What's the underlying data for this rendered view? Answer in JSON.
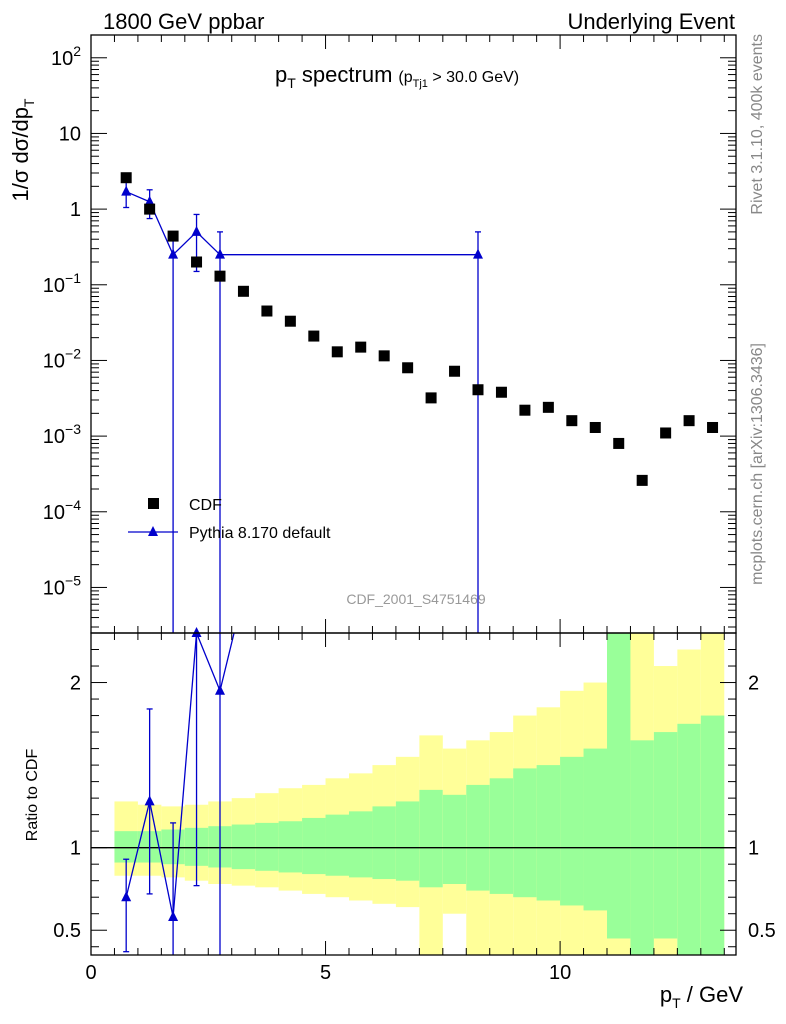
{
  "header": {
    "left": "1800 GeV ppbar",
    "right": "Underlying Event"
  },
  "title": {
    "main": "p",
    "main_sub": "T",
    "main_rest": " spectrum",
    "cut_open": "(p",
    "cut_sub": "Tj1",
    "cut_rest": " > 30.0 GeV)"
  },
  "side_label_top": "Rivet 3.1.10,  400k events",
  "side_label_bottom": "mcplots.cern.ch [arXiv:1306.3436]",
  "watermark": "CDF_2001_S4751469",
  "ylabel_main": "1/σ dσ/dp",
  "ylabel_main_sub": "T",
  "ylabel_ratio": "Ratio to CDF",
  "xlabel": "p",
  "xlabel_sub": "T",
  "xlabel_rest": " / GeV",
  "legend": {
    "data_label": "CDF",
    "mc_label": "Pythia 8.170 default"
  },
  "colors": {
    "mc": "#0000cc",
    "band_inner": "#99ff99",
    "band_outer": "#ffff99",
    "data": "#000000"
  },
  "chart_data": {
    "type": "scatter",
    "x_range": [
      0,
      13.75
    ],
    "main_yscale": "log",
    "main_ylim": [
      2.5e-06,
      200
    ],
    "ratio_ylim": [
      0.35,
      2.3
    ],
    "x_ticks": [
      {
        "v": 0,
        "label": "0"
      },
      {
        "v": 5,
        "label": "5"
      },
      {
        "v": 10,
        "label": "10"
      }
    ],
    "main_y_ticks": [
      {
        "exp": -5,
        "label": "10",
        "sup": "−5"
      },
      {
        "exp": -4,
        "label": "10",
        "sup": "−4"
      },
      {
        "exp": -3,
        "label": "10",
        "sup": "−3"
      },
      {
        "exp": -2,
        "label": "10",
        "sup": "−2"
      },
      {
        "exp": -1,
        "label": "10",
        "sup": "−1"
      },
      {
        "exp": 0,
        "label": "1",
        "sup": ""
      },
      {
        "exp": 1,
        "label": "10",
        "sup": ""
      },
      {
        "exp": 2,
        "label": "10",
        "sup": "2"
      }
    ],
    "ratio_y_ticks": [
      {
        "v": 0.5,
        "label": "0.5"
      },
      {
        "v": 1,
        "label": "1"
      },
      {
        "v": 2,
        "label": "2"
      }
    ],
    "data_series": {
      "name": "CDF",
      "x": [
        0.75,
        1.25,
        1.75,
        2.25,
        2.75,
        3.25,
        3.75,
        4.25,
        4.75,
        5.25,
        5.75,
        6.25,
        6.75,
        7.25,
        7.75,
        8.25,
        8.75,
        9.25,
        9.75,
        10.25,
        10.75,
        11.25,
        11.75,
        12.25,
        12.75,
        13.25
      ],
      "y": [
        2.6,
        1.0,
        0.44,
        0.2,
        0.13,
        0.082,
        0.045,
        0.033,
        0.021,
        0.013,
        0.015,
        0.0115,
        0.008,
        0.0032,
        0.0072,
        0.0041,
        0.0038,
        0.0022,
        0.0024,
        0.0016,
        0.0013,
        0.0008,
        0.00026,
        0.0011,
        0.0016,
        0.0013
      ]
    },
    "mc_series": {
      "name": "Pythia 8.170 default",
      "x": [
        0.75,
        1.25,
        1.75,
        2.25,
        2.75,
        8.25
      ],
      "y": [
        1.7,
        1.25,
        0.25,
        0.5,
        0.25,
        0.25
      ],
      "yerr_up": [
        2.5,
        1.8,
        0.5,
        0.85,
        0.5,
        0.5
      ],
      "yerr_down": [
        1.05,
        0.75,
        0.0,
        0.15,
        0.0,
        0.0
      ]
    },
    "ratio_mc": {
      "x": [
        0.75,
        1.25,
        1.75,
        2.25,
        2.75
      ],
      "y": [
        0.7,
        1.28,
        0.58,
        2.3,
        1.95
      ],
      "yerr_up": [
        0.93,
        1.84,
        1.15,
        2.3,
        2.3
      ],
      "yerr_down": [
        0.37,
        0.72,
        0.0,
        0.77,
        0.0
      ]
    },
    "ratio_bands": {
      "edges": [
        0.5,
        1.0,
        1.5,
        2.0,
        2.5,
        3.0,
        3.5,
        4.0,
        4.5,
        5.0,
        5.5,
        6.0,
        6.5,
        7.0,
        7.5,
        8.0,
        8.5,
        9.0,
        9.5,
        10.0,
        10.5,
        11.0,
        11.5,
        12.0,
        12.5,
        13.0,
        13.5
      ],
      "inner_lo": [
        0.91,
        0.91,
        0.9,
        0.89,
        0.88,
        0.87,
        0.86,
        0.85,
        0.84,
        0.83,
        0.82,
        0.81,
        0.8,
        0.76,
        0.78,
        0.74,
        0.72,
        0.7,
        0.68,
        0.65,
        0.62,
        0.45,
        0.35,
        0.45,
        0.35,
        0.35
      ],
      "inner_hi": [
        1.1,
        1.1,
        1.11,
        1.12,
        1.13,
        1.14,
        1.15,
        1.16,
        1.18,
        1.2,
        1.22,
        1.25,
        1.28,
        1.35,
        1.32,
        1.38,
        1.42,
        1.48,
        1.5,
        1.55,
        1.6,
        2.3,
        1.65,
        1.7,
        1.75,
        1.8
      ],
      "outer_lo": [
        0.83,
        0.83,
        0.82,
        0.8,
        0.78,
        0.77,
        0.76,
        0.74,
        0.72,
        0.7,
        0.68,
        0.66,
        0.64,
        0.35,
        0.6,
        0.35,
        0.35,
        0.35,
        0.35,
        0.35,
        0.35,
        0.35,
        0.35,
        0.35,
        0.35,
        0.35
      ],
      "outer_hi": [
        1.28,
        1.26,
        1.25,
        1.26,
        1.28,
        1.3,
        1.33,
        1.36,
        1.38,
        1.42,
        1.45,
        1.5,
        1.55,
        1.68,
        1.6,
        1.65,
        1.7,
        1.8,
        1.85,
        1.95,
        2.0,
        2.2,
        2.3,
        2.1,
        2.2,
        2.3
      ]
    }
  }
}
